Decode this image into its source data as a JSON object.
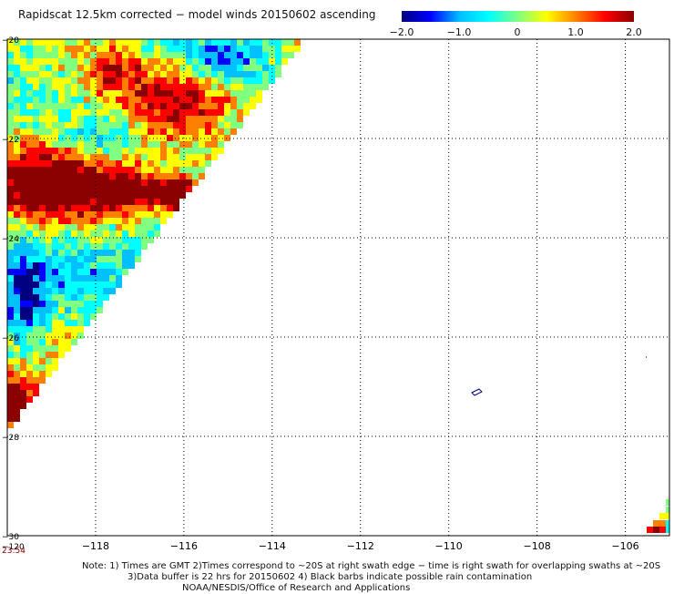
{
  "title": "Rapidscat 12.5km corrected − model winds 20150602 ascending",
  "colorbar": {
    "min": -2.0,
    "max": 2.0,
    "tick_labels": [
      "−2.0",
      "−1.0",
      "0",
      "1.0",
      "2.0"
    ],
    "tick_values": [
      -2.0,
      -1.0,
      0,
      1.0,
      2.0
    ],
    "colors": [
      "#000080",
      "#0000ff",
      "#00c0ff",
      "#00ffff",
      "#80ff80",
      "#ffff00",
      "#ff8000",
      "#ff0000",
      "#8b0000"
    ]
  },
  "map": {
    "lon_range": [
      -120,
      -105
    ],
    "lat_range": [
      -30,
      -20
    ],
    "lon_tick_labels": [
      "−118",
      "−116",
      "−114",
      "−112",
      "−110",
      "−108",
      "−106"
    ],
    "lon_tick_values": [
      -118,
      -116,
      -114,
      -112,
      -110,
      -108,
      -106
    ],
    "lat_tick_labels": [
      "−20",
      "−22",
      "−24",
      "−26",
      "−28",
      "−30"
    ],
    "lat_tick_values": [
      -20,
      -22,
      -24,
      -26,
      -28,
      -30
    ],
    "lon_corner_label": "−120",
    "grid": "dotted"
  },
  "timestamp": "23:54",
  "notes": {
    "line1": "Note: 1) Times are GMT 2)Times correspond to ~20S at right swath edge − time is right swath for overlapping swaths at ~20S",
    "line2": "3)Data buffer is 22 hrs for 20150602 4) Black barbs indicate possible rain contamination",
    "credit": "NOAA/NESDIS/Office of Research and Applications"
  }
}
